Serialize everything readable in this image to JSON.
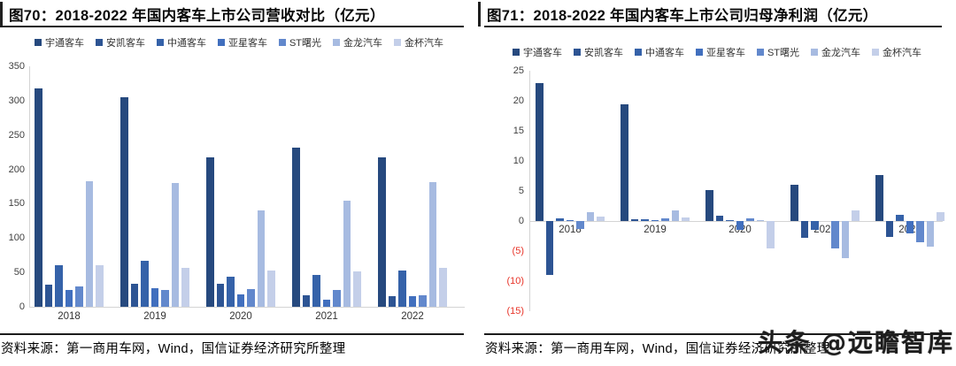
{
  "watermark": "头条 @远瞻智库",
  "series_colors": [
    "#26497E",
    "#2D5493",
    "#3562A9",
    "#416FBE",
    "#6288CC",
    "#A7BBE1",
    "#C4CFE9"
  ],
  "negative_tick_color": "#E8352A",
  "panels": [
    {
      "title": "图70：2018-2022 年国内客车上市公司营收对比（亿元）",
      "source": "资料来源：第一商用车网，Wind，国信证券经济研究所整理"
    },
    {
      "title": "图71：2018-2022 年国内客车上市公司归母净利润（亿元）",
      "source": "资料来源：第一商用车网，Wind，国信证券经济研究所整理"
    }
  ],
  "chart_data": [
    {
      "type": "bar",
      "title": "图70：2018-2022 年国内客车上市公司营收对比（亿元）",
      "categories": [
        "2018",
        "2019",
        "2020",
        "2021",
        "2022"
      ],
      "series": [
        {
          "name": "宇通客车",
          "values": [
            318,
            305,
            218,
            232,
            218
          ]
        },
        {
          "name": "安凯客车",
          "values": [
            32,
            33,
            33,
            17,
            15
          ]
        },
        {
          "name": "中通客车",
          "values": [
            60,
            67,
            44,
            46,
            53
          ]
        },
        {
          "name": "亚星客车",
          "values": [
            25,
            27,
            18,
            10,
            15
          ]
        },
        {
          "name": "ST曙光",
          "values": [
            29,
            24,
            26,
            24,
            17
          ]
        },
        {
          "name": "金龙汽车",
          "values": [
            183,
            180,
            140,
            154,
            182
          ]
        },
        {
          "name": "金杯汽车",
          "values": [
            61,
            56,
            53,
            51,
            56
          ]
        }
      ],
      "xlabel": "",
      "ylabel": "",
      "ylim": [
        0,
        350
      ],
      "yticks": [
        0,
        50,
        100,
        150,
        200,
        250,
        300,
        350
      ],
      "legend_position": "top",
      "grid": false
    },
    {
      "type": "bar",
      "title": "图71：2018-2022 年国内客车上市公司归母净利润（亿元）",
      "categories": [
        "2018",
        "2019",
        "2020",
        "2021",
        "2022"
      ],
      "series": [
        {
          "name": "宇通客车",
          "values": [
            23.0,
            19.4,
            5.2,
            6.1,
            7.6
          ]
        },
        {
          "name": "安凯客车",
          "values": [
            -8.9,
            0.3,
            0.9,
            -2.8,
            -2.6
          ]
        },
        {
          "name": "中通客车",
          "values": [
            0.4,
            0.3,
            0.2,
            -1.5,
            1.1
          ]
        },
        {
          "name": "亚星客车",
          "values": [
            0.1,
            0.1,
            -1.5,
            0.0,
            -2.1
          ]
        },
        {
          "name": "ST曙光",
          "values": [
            -1.3,
            0.5,
            0.5,
            -4.6,
            -3.6
          ]
        },
        {
          "name": "金龙汽车",
          "values": [
            1.5,
            1.8,
            0.2,
            -6.2,
            -4.2
          ]
        },
        {
          "name": "金杯汽车",
          "values": [
            0.8,
            0.6,
            -4.5,
            1.7,
            1.4
          ]
        }
      ],
      "xlabel": "",
      "ylabel": "",
      "ylim": [
        -15,
        25
      ],
      "yticks": [
        25,
        20,
        15,
        10,
        5,
        0,
        -5,
        -10,
        -15
      ],
      "ytick_labels": [
        "25",
        "20",
        "15",
        "10",
        "5",
        "0",
        "(5)",
        "(10)",
        "(15)"
      ],
      "legend_position": "top",
      "grid": false
    }
  ]
}
